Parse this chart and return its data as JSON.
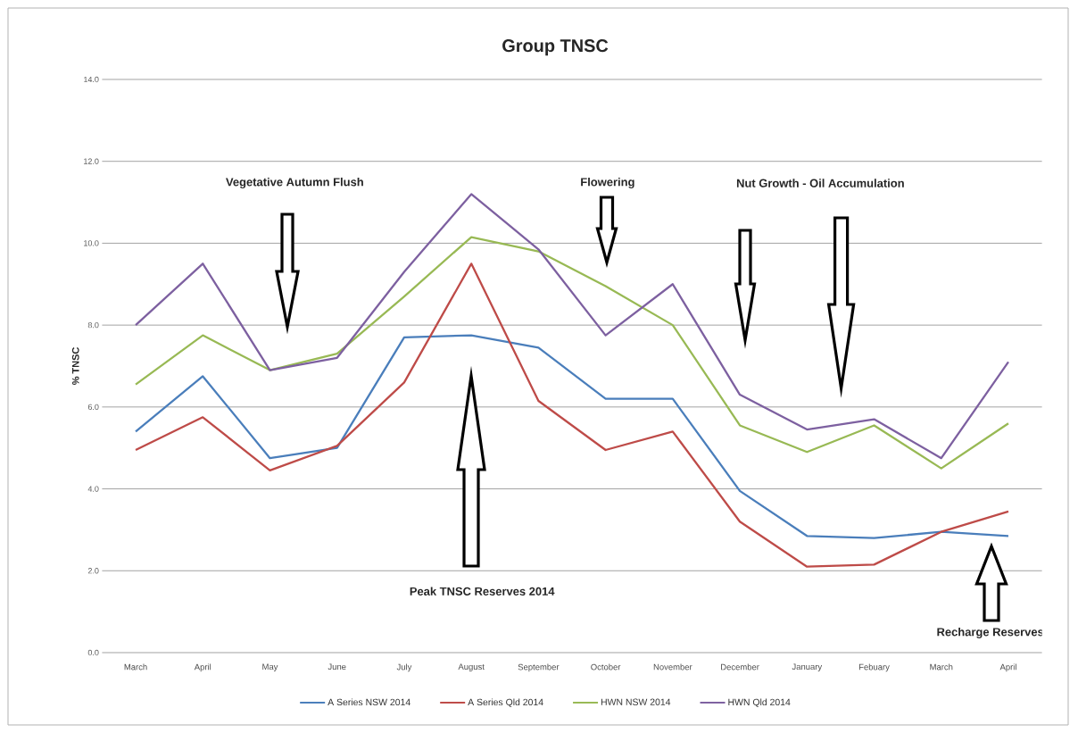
{
  "chart_data": {
    "type": "line",
    "title": "Group TNSC",
    "ylabel": "% TNSC",
    "categories": [
      "March",
      "April",
      "May",
      "June",
      "July",
      "August",
      "September",
      "October",
      "November",
      "December",
      "January",
      "Febuary",
      "March",
      "April"
    ],
    "series": [
      {
        "name": "A Series NSW 2014",
        "color": "#4a7ebb",
        "values": [
          5.4,
          6.75,
          4.75,
          5.0,
          7.7,
          7.75,
          7.45,
          6.2,
          6.2,
          3.95,
          2.85,
          2.8,
          2.95,
          2.85
        ]
      },
      {
        "name": "A Series Qld 2014",
        "color": "#be4b48",
        "values": [
          4.95,
          5.75,
          4.45,
          5.05,
          6.6,
          9.5,
          6.15,
          4.95,
          5.4,
          3.2,
          2.1,
          2.15,
          2.95,
          3.45
        ]
      },
      {
        "name": "HWN NSW 2014",
        "color": "#98b954",
        "values": [
          6.55,
          7.75,
          6.9,
          7.3,
          8.7,
          10.15,
          9.8,
          8.95,
          8.0,
          5.55,
          4.9,
          5.55,
          4.5,
          5.6
        ]
      },
      {
        "name": "HWN Qld 2014",
        "color": "#7d60a0",
        "values": [
          8.0,
          9.5,
          6.9,
          7.2,
          9.3,
          11.2,
          9.85,
          7.75,
          9.0,
          6.3,
          5.45,
          5.7,
          4.75,
          7.1
        ]
      }
    ],
    "ylim": [
      0,
      14
    ],
    "yticks": [
      {
        "value": 0,
        "label": "0.0"
      },
      {
        "value": 2,
        "label": "2.0"
      },
      {
        "value": 4,
        "label": "4.0"
      },
      {
        "value": 6,
        "label": "6.0"
      },
      {
        "value": 8,
        "label": "8.0"
      },
      {
        "value": 10,
        "label": "10.0"
      },
      {
        "value": 12,
        "label": "12.0"
      },
      {
        "value": 14,
        "label": "14.0"
      }
    ],
    "grid": "y",
    "legend": "bottom",
    "line_style": "solid",
    "annotations": [
      "Vegetative Autumn Flush",
      "Flowering",
      "Nut Growth - Oil Accumulation",
      "Peak TNSC Reserves 2014",
      "Recharge Reserves"
    ]
  }
}
